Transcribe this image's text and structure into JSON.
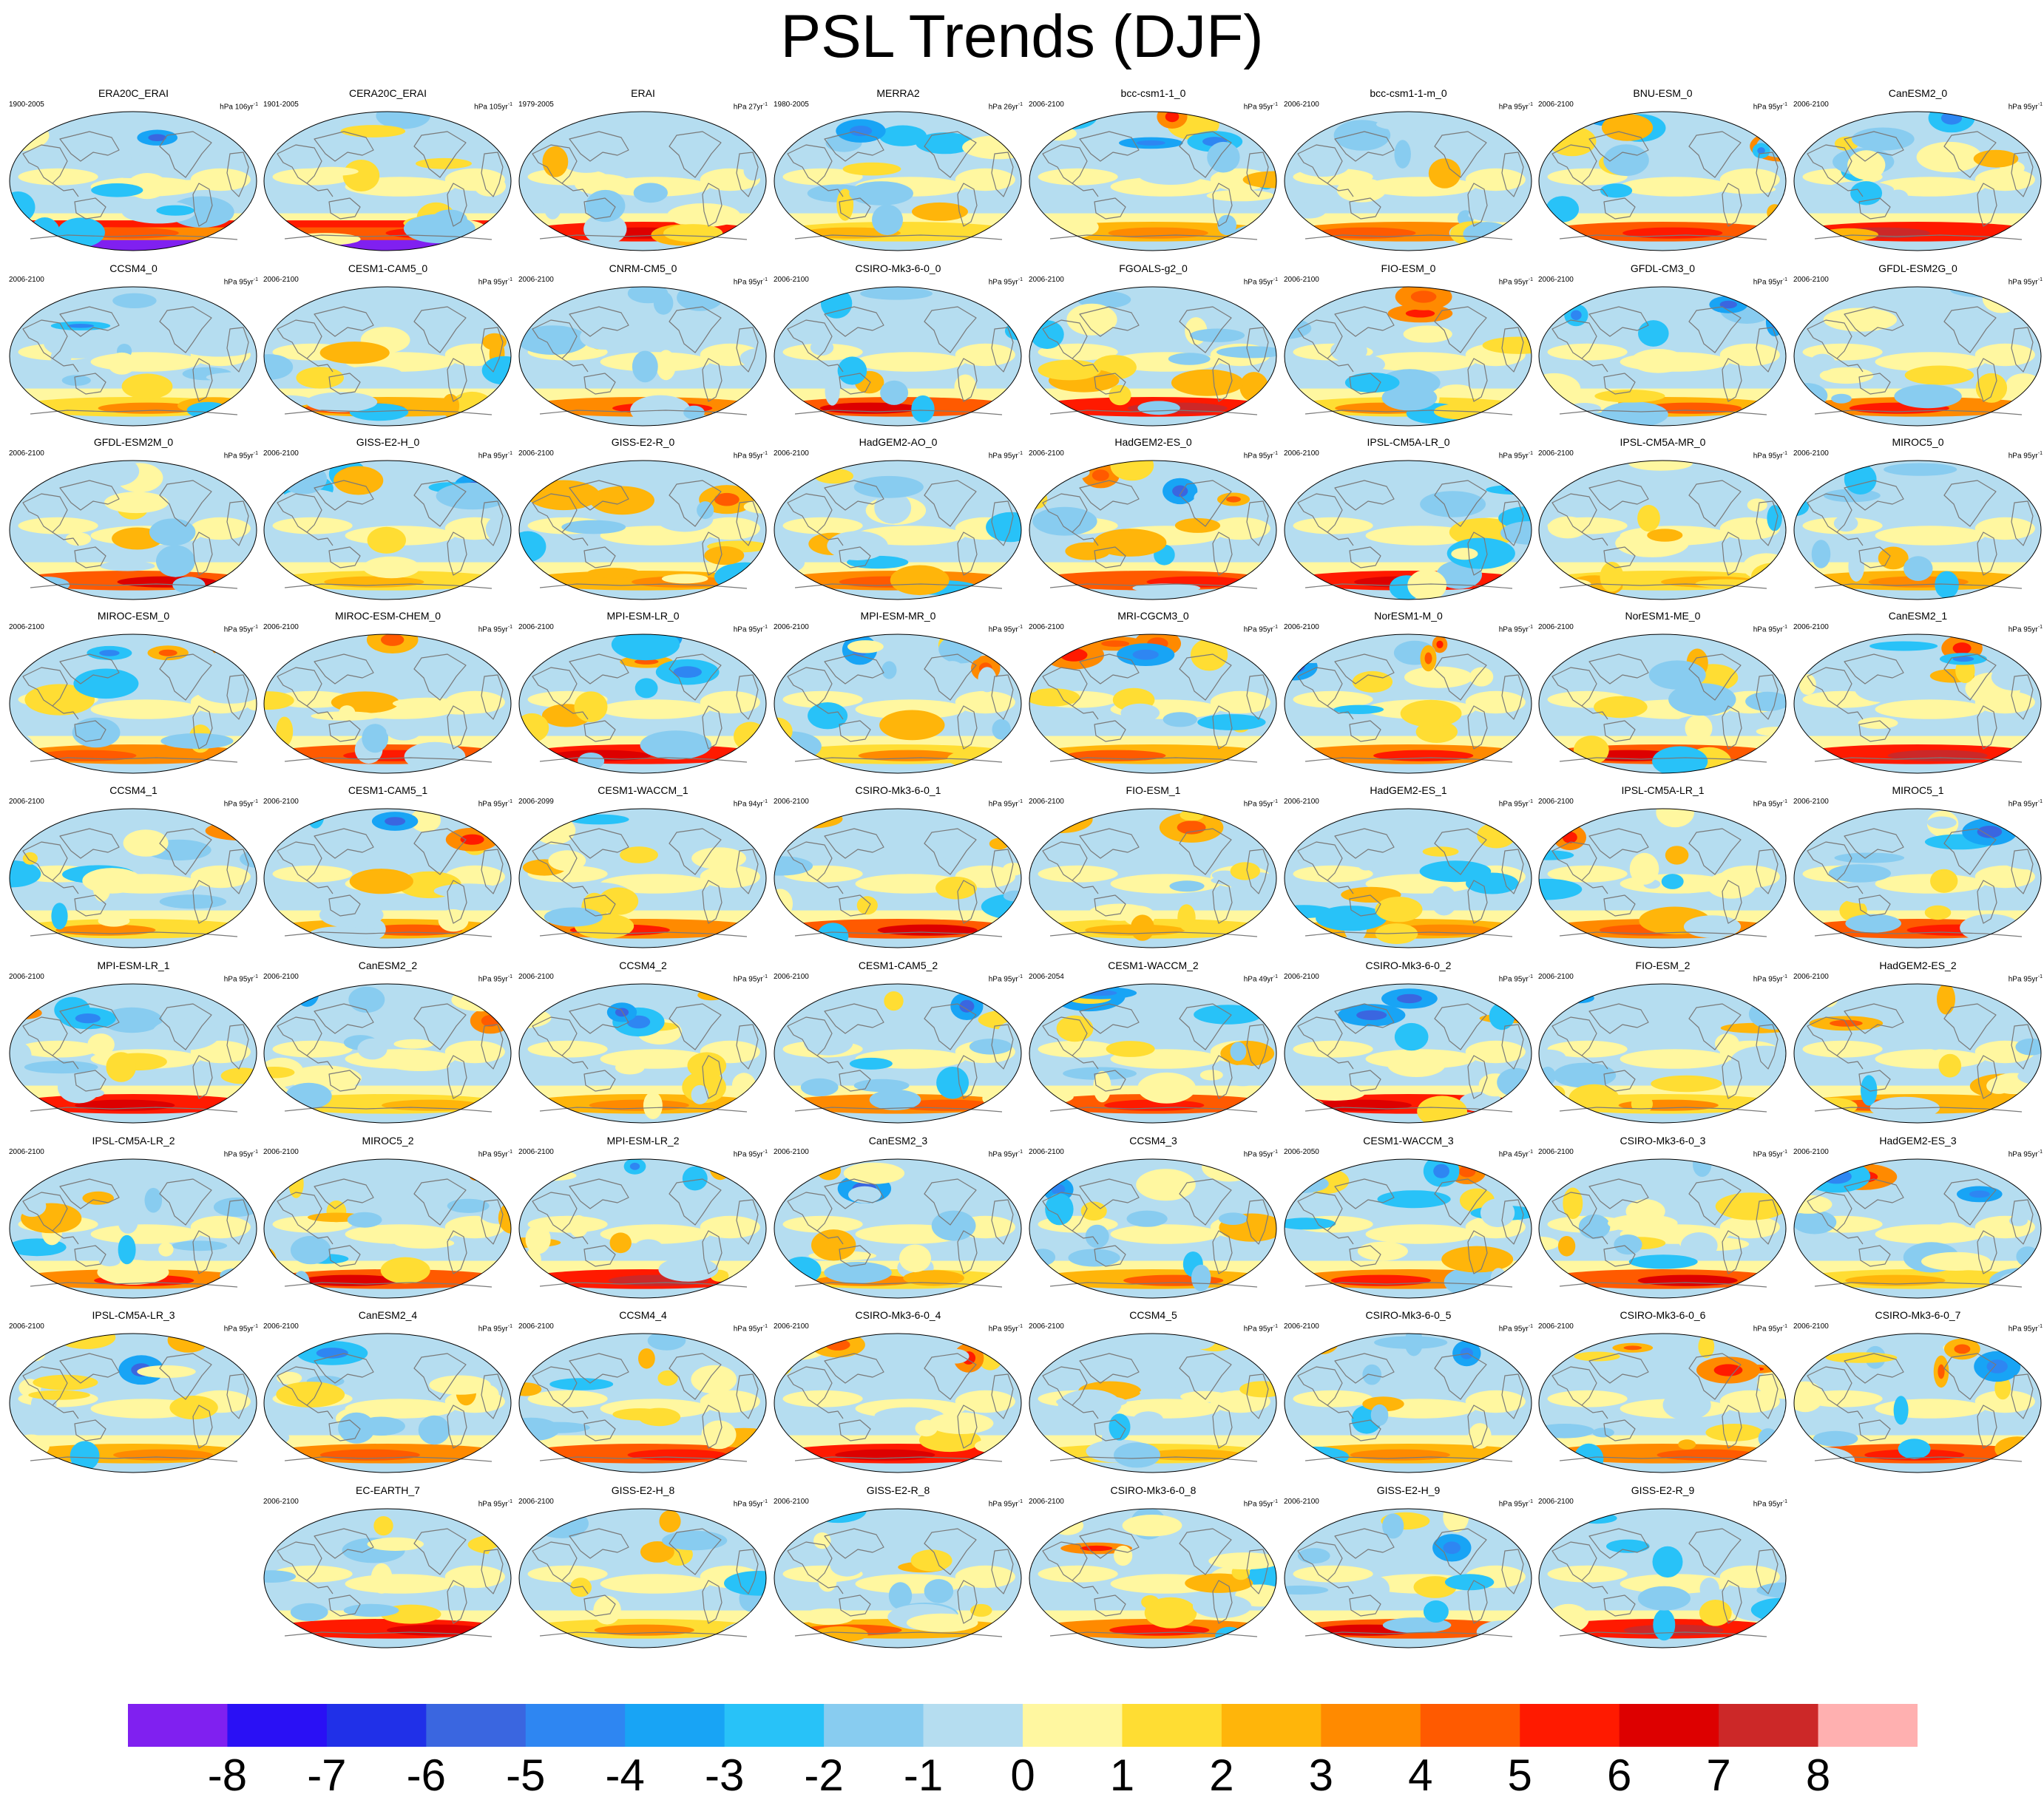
{
  "title": "PSL Trends (DJF)",
  "chart_data": {
    "type": "heatmap",
    "title": "PSL Trends (DJF)",
    "projection": "Robinson global maps (small multiples)",
    "panels": [
      {
        "name": "ERA20C_ERAI",
        "period": "1900-2005",
        "units": "hPa 106yr",
        "pattern": 1
      },
      {
        "name": "CERA20C_ERAI",
        "period": "1901-2005",
        "units": "hPa 105yr",
        "pattern": 2
      },
      {
        "name": "ERAI",
        "period": "1979-2005",
        "units": "hPa 27yr",
        "pattern": 3
      },
      {
        "name": "MERRA2",
        "period": "1980-2005",
        "units": "hPa 26yr",
        "pattern": 4
      },
      {
        "name": "bcc-csm1-1_0",
        "period": "2006-2100",
        "units": "hPa 95yr",
        "pattern": 5
      },
      {
        "name": "bcc-csm1-1-m_0",
        "period": "2006-2100",
        "units": "hPa 95yr",
        "pattern": 6
      },
      {
        "name": "BNU-ESM_0",
        "period": "2006-2100",
        "units": "hPa 95yr",
        "pattern": 7
      },
      {
        "name": "CanESM2_0",
        "period": "2006-2100",
        "units": "hPa 95yr",
        "pattern": 8
      },
      {
        "name": "CCSM4_0",
        "period": "2006-2100",
        "units": "hPa 95yr",
        "pattern": 9
      },
      {
        "name": "CESM1-CAM5_0",
        "period": "2006-2100",
        "units": "hPa 95yr",
        "pattern": 10
      },
      {
        "name": "CNRM-CM5_0",
        "period": "2006-2100",
        "units": "hPa 95yr",
        "pattern": 11
      },
      {
        "name": "CSIRO-Mk3-6-0_0",
        "period": "2006-2100",
        "units": "hPa 95yr",
        "pattern": 12
      },
      {
        "name": "FGOALS-g2_0",
        "period": "2006-2100",
        "units": "hPa 95yr",
        "pattern": 13
      },
      {
        "name": "FIO-ESM_0",
        "period": "2006-2100",
        "units": "hPa 95yr",
        "pattern": 14
      },
      {
        "name": "GFDL-CM3_0",
        "period": "2006-2100",
        "units": "hPa 95yr",
        "pattern": 15
      },
      {
        "name": "GFDL-ESM2G_0",
        "period": "2006-2100",
        "units": "hPa 95yr",
        "pattern": 16
      },
      {
        "name": "GFDL-ESM2M_0",
        "period": "2006-2100",
        "units": "hPa 95yr",
        "pattern": 17
      },
      {
        "name": "GISS-E2-H_0",
        "period": "2006-2100",
        "units": "hPa 95yr",
        "pattern": 18
      },
      {
        "name": "GISS-E2-R_0",
        "period": "2006-2100",
        "units": "hPa 95yr",
        "pattern": 19
      },
      {
        "name": "HadGEM2-AO_0",
        "period": "2006-2100",
        "units": "hPa 95yr",
        "pattern": 20
      },
      {
        "name": "HadGEM2-ES_0",
        "period": "2006-2100",
        "units": "hPa 95yr",
        "pattern": 21
      },
      {
        "name": "IPSL-CM5A-LR_0",
        "period": "2006-2100",
        "units": "hPa 95yr",
        "pattern": 22
      },
      {
        "name": "IPSL-CM5A-MR_0",
        "period": "2006-2100",
        "units": "hPa 95yr",
        "pattern": 23
      },
      {
        "name": "MIROC5_0",
        "period": "2006-2100",
        "units": "hPa 95yr",
        "pattern": 24
      },
      {
        "name": "MIROC-ESM_0",
        "period": "2006-2100",
        "units": "hPa 95yr",
        "pattern": 25
      },
      {
        "name": "MIROC-ESM-CHEM_0",
        "period": "2006-2100",
        "units": "hPa 95yr",
        "pattern": 26
      },
      {
        "name": "MPI-ESM-LR_0",
        "period": "2006-2100",
        "units": "hPa 95yr",
        "pattern": 27
      },
      {
        "name": "MPI-ESM-MR_0",
        "period": "2006-2100",
        "units": "hPa 95yr",
        "pattern": 28
      },
      {
        "name": "MRI-CGCM3_0",
        "period": "2006-2100",
        "units": "hPa 95yr",
        "pattern": 29
      },
      {
        "name": "NorESM1-M_0",
        "period": "2006-2100",
        "units": "hPa 95yr",
        "pattern": 30
      },
      {
        "name": "NorESM1-ME_0",
        "period": "2006-2100",
        "units": "hPa 95yr",
        "pattern": 31
      },
      {
        "name": "CanESM2_1",
        "period": "2006-2100",
        "units": "hPa 95yr",
        "pattern": 32
      },
      {
        "name": "CCSM4_1",
        "period": "2006-2100",
        "units": "hPa 95yr",
        "pattern": 33
      },
      {
        "name": "CESM1-CAM5_1",
        "period": "2006-2100",
        "units": "hPa 95yr",
        "pattern": 34
      },
      {
        "name": "CESM1-WACCM_1",
        "period": "2006-2099",
        "units": "hPa 94yr",
        "pattern": 35
      },
      {
        "name": "CSIRO-Mk3-6-0_1",
        "period": "2006-2100",
        "units": "hPa 95yr",
        "pattern": 36
      },
      {
        "name": "FIO-ESM_1",
        "period": "2006-2100",
        "units": "hPa 95yr",
        "pattern": 37
      },
      {
        "name": "HadGEM2-ES_1",
        "period": "2006-2100",
        "units": "hPa 95yr",
        "pattern": 38
      },
      {
        "name": "IPSL-CM5A-LR_1",
        "period": "2006-2100",
        "units": "hPa 95yr",
        "pattern": 39
      },
      {
        "name": "MIROC5_1",
        "period": "2006-2100",
        "units": "hPa 95yr",
        "pattern": 40
      },
      {
        "name": "MPI-ESM-LR_1",
        "period": "2006-2100",
        "units": "hPa 95yr",
        "pattern": 41
      },
      {
        "name": "CanESM2_2",
        "period": "2006-2100",
        "units": "hPa 95yr",
        "pattern": 42
      },
      {
        "name": "CCSM4_2",
        "period": "2006-2100",
        "units": "hPa 95yr",
        "pattern": 43
      },
      {
        "name": "CESM1-CAM5_2",
        "period": "2006-2100",
        "units": "hPa 95yr",
        "pattern": 44
      },
      {
        "name": "CESM1-WACCM_2",
        "period": "2006-2054",
        "units": "hPa 49yr",
        "pattern": 45
      },
      {
        "name": "CSIRO-Mk3-6-0_2",
        "period": "2006-2100",
        "units": "hPa 95yr",
        "pattern": 46
      },
      {
        "name": "FIO-ESM_2",
        "period": "2006-2100",
        "units": "hPa 95yr",
        "pattern": 47
      },
      {
        "name": "HadGEM2-ES_2",
        "period": "2006-2100",
        "units": "hPa 95yr",
        "pattern": 48
      },
      {
        "name": "IPSL-CM5A-LR_2",
        "period": "2006-2100",
        "units": "hPa 95yr",
        "pattern": 49
      },
      {
        "name": "MIROC5_2",
        "period": "2006-2100",
        "units": "hPa 95yr",
        "pattern": 50
      },
      {
        "name": "MPI-ESM-LR_2",
        "period": "2006-2100",
        "units": "hPa 95yr",
        "pattern": 51
      },
      {
        "name": "CanESM2_3",
        "period": "2006-2100",
        "units": "hPa 95yr",
        "pattern": 52
      },
      {
        "name": "CCSM4_3",
        "period": "2006-2100",
        "units": "hPa 95yr",
        "pattern": 53
      },
      {
        "name": "CESM1-WACCM_3",
        "period": "2006-2050",
        "units": "hPa 45yr",
        "pattern": 54
      },
      {
        "name": "CSIRO-Mk3-6-0_3",
        "period": "2006-2100",
        "units": "hPa 95yr",
        "pattern": 55
      },
      {
        "name": "HadGEM2-ES_3",
        "period": "2006-2100",
        "units": "hPa 95yr",
        "pattern": 56
      },
      {
        "name": "IPSL-CM5A-LR_3",
        "period": "2006-2100",
        "units": "hPa 95yr",
        "pattern": 57
      },
      {
        "name": "CanESM2_4",
        "period": "2006-2100",
        "units": "hPa 95yr",
        "pattern": 58
      },
      {
        "name": "CCSM4_4",
        "period": "2006-2100",
        "units": "hPa 95yr",
        "pattern": 59
      },
      {
        "name": "CSIRO-Mk3-6-0_4",
        "period": "2006-2100",
        "units": "hPa 95yr",
        "pattern": 60
      },
      {
        "name": "CCSM4_5",
        "period": "2006-2100",
        "units": "hPa 95yr",
        "pattern": 61
      },
      {
        "name": "CSIRO-Mk3-6-0_5",
        "period": "2006-2100",
        "units": "hPa 95yr",
        "pattern": 62
      },
      {
        "name": "CSIRO-Mk3-6-0_6",
        "period": "2006-2100",
        "units": "hPa 95yr",
        "pattern": 63
      },
      {
        "name": "CSIRO-Mk3-6-0_7",
        "period": "2006-2100",
        "units": "hPa 95yr",
        "pattern": 64
      },
      {
        "name": "EC-EARTH_7",
        "period": "2006-2100",
        "units": "hPa 95yr",
        "pattern": 65
      },
      {
        "name": "GISS-E2-H_8",
        "period": "2006-2100",
        "units": "hPa 95yr",
        "pattern": 66
      },
      {
        "name": "GISS-E2-R_8",
        "period": "2006-2100",
        "units": "hPa 95yr",
        "pattern": 67
      },
      {
        "name": "CSIRO-Mk3-6-0_8",
        "period": "2006-2100",
        "units": "hPa 95yr",
        "pattern": 68
      },
      {
        "name": "GISS-E2-H_9",
        "period": "2006-2100",
        "units": "hPa 95yr",
        "pattern": 69
      },
      {
        "name": "GISS-E2-R_9",
        "period": "2006-2100",
        "units": "hPa 95yr",
        "pattern": 70
      }
    ],
    "colorbar": {
      "ticks": [
        "-8",
        "-7",
        "-6",
        "-5",
        "-4",
        "-3",
        "-2",
        "-1",
        "0",
        "1",
        "2",
        "3",
        "4",
        "5",
        "6",
        "7",
        "8"
      ],
      "colors": [
        "#8020F0",
        "#2A10F5",
        "#2030E8",
        "#3A66E0",
        "#2E86F2",
        "#18A4F5",
        "#28C2F8",
        "#88CCF0",
        "#B5DDF0",
        "#FFF7A0",
        "#FFDD33",
        "#FFB50A",
        "#FF8A00",
        "#FF5A00",
        "#FF1A00",
        "#DD0000",
        "#CC2828",
        "#FFB0B0"
      ]
    }
  }
}
